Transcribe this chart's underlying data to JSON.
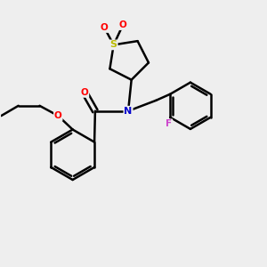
{
  "background_color": "#eeeeee",
  "bond_color": "#000000",
  "bond_width": 1.8,
  "atom_colors": {
    "S": "#bbbb00",
    "O": "#ff0000",
    "N": "#0000cc",
    "F": "#cc44cc",
    "C": "#000000"
  },
  "figsize": [
    3.0,
    3.0
  ],
  "dpi": 100,
  "xlim": [
    0,
    10
  ],
  "ylim": [
    0,
    10
  ]
}
